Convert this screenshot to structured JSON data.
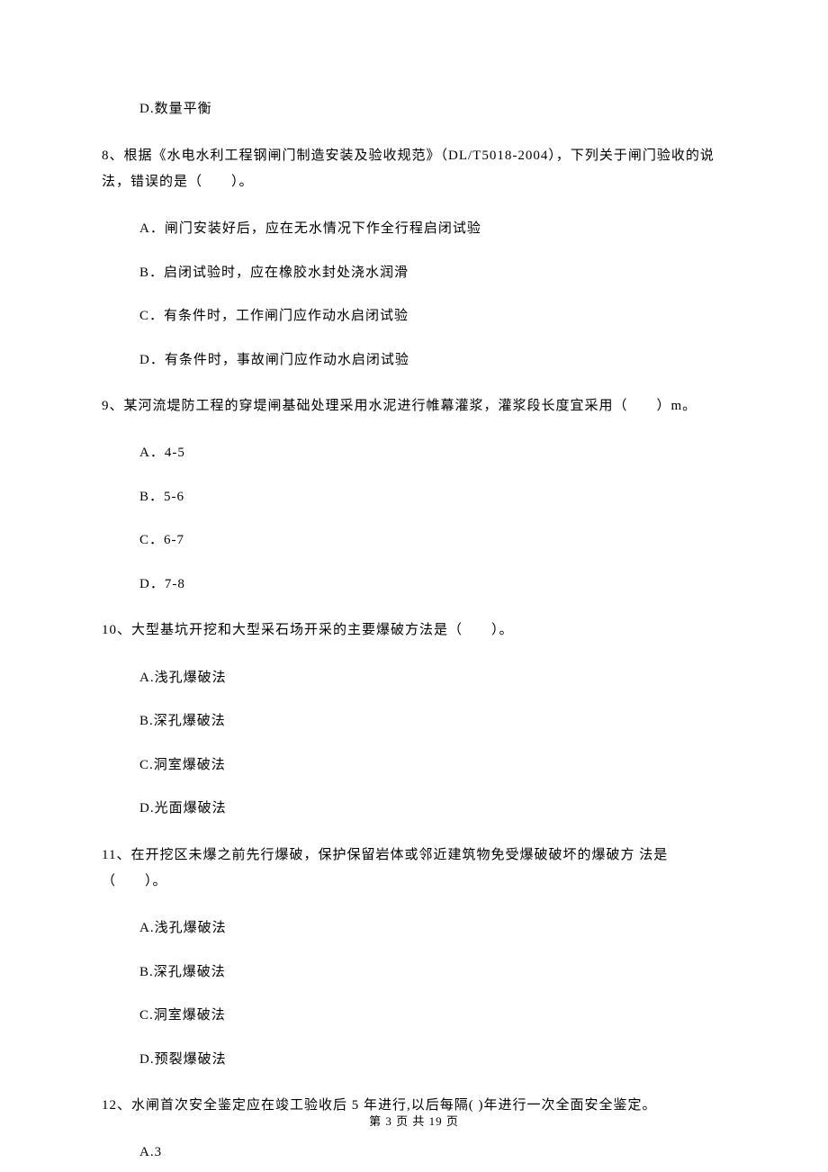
{
  "q7": {
    "options": {
      "D": "D.数量平衡"
    }
  },
  "q8": {
    "text": "8、根据《水电水利工程钢闸门制造安装及验收规范》（DL/T5018-2004），下列关于闸门验收的说法，错误的是（　　）。",
    "options": {
      "A": "A．闸门安装好后，应在无水情况下作全行程启闭试验",
      "B": "B．启闭试验时，应在橡胶水封处浇水润滑",
      "C": "C．有条件时，工作闸门应作动水启闭试验",
      "D": "D．有条件时，事故闸门应作动水启闭试验"
    }
  },
  "q9": {
    "text": "9、某河流堤防工程的穿堤闸基础处理采用水泥进行帷幕灌浆，灌浆段长度宜采用（　　）m。",
    "options": {
      "A": "A．4-5",
      "B": "B．5-6",
      "C": "C．6-7",
      "D": "D．7-8"
    }
  },
  "q10": {
    "text": "10、大型基坑开挖和大型采石场开采的主要爆破方法是（　　）。",
    "options": {
      "A": "A.浅孔爆破法",
      "B": "B.深孔爆破法",
      "C": "C.洞室爆破法",
      "D": "D.光面爆破法"
    }
  },
  "q11": {
    "text": "11、在开挖区未爆之前先行爆破，保护保留岩体或邻近建筑物免受爆破破坏的爆破方 法是（　　）。",
    "options": {
      "A": "A.浅孔爆破法",
      "B": "B.深孔爆破法",
      "C": "C.洞室爆破法",
      "D": "D.预裂爆破法"
    }
  },
  "q12": {
    "text": "12、水闸首次安全鉴定应在竣工验收后 5 年进行,以后每隔( )年进行一次全面安全鉴定。",
    "options": {
      "A": "A.3"
    }
  },
  "footer": "第 3 页 共 19 页"
}
